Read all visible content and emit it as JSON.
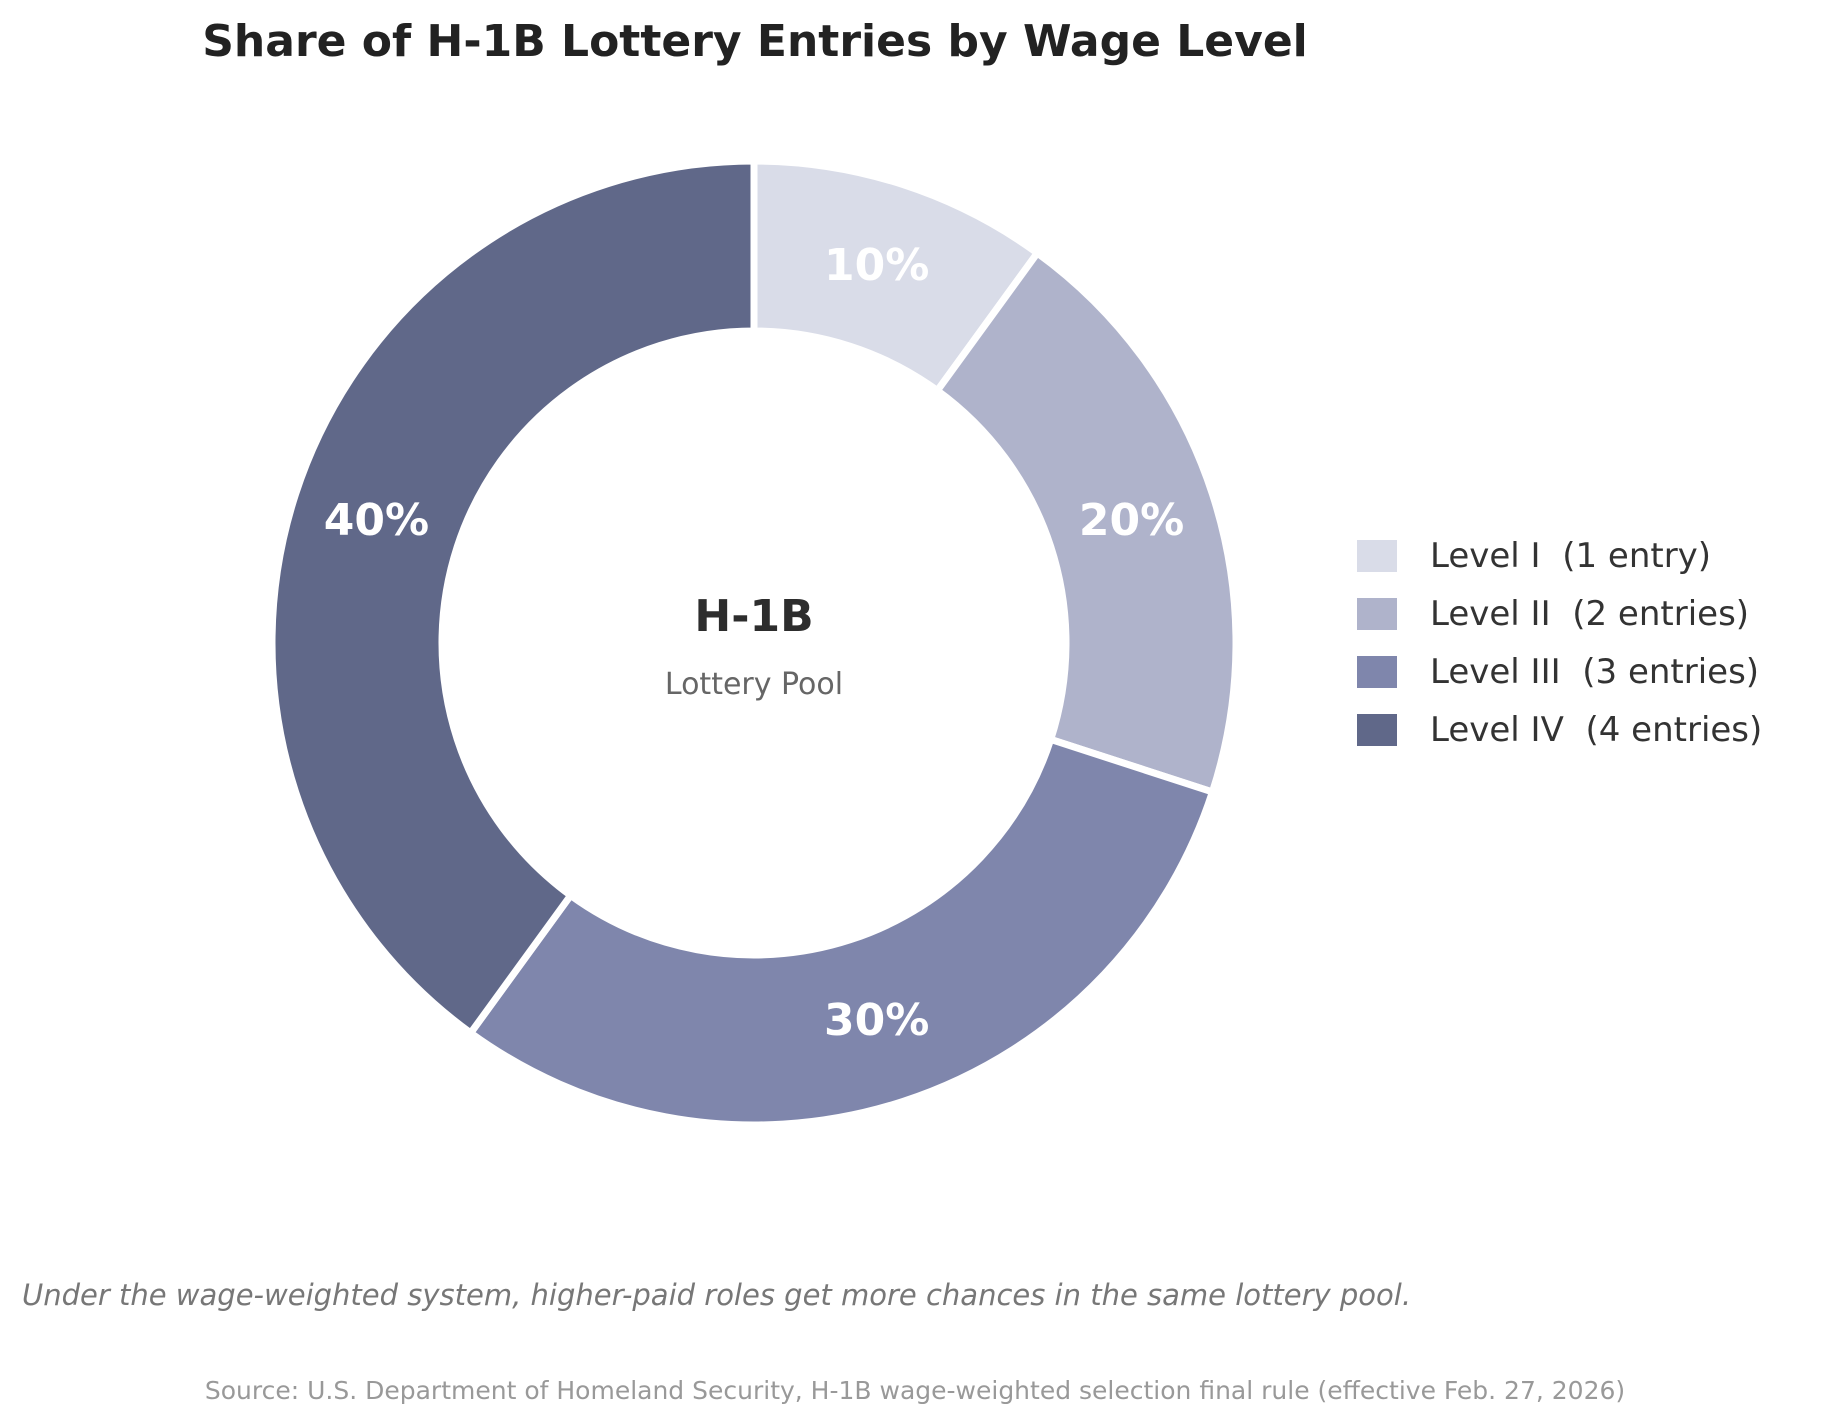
{
  "chart_data": {
    "type": "pie",
    "style": "donut",
    "title": "Share of H-1B Lottery Entries by Wage Level",
    "center_label": {
      "title": "H-1B",
      "subtitle": "Lottery Pool"
    },
    "categories": [
      "Level I  (1 entry)",
      "Level II  (2 entries)",
      "Level III  (3 entries)",
      "Level IV  (4 entries)"
    ],
    "values": [
      10,
      20,
      30,
      40
    ],
    "value_labels": [
      "10%",
      "20%",
      "30%",
      "40%"
    ],
    "colors": [
      "#d9dce8",
      "#afb3cb",
      "#7f86ac",
      "#606889"
    ],
    "start_angle": "12 o'clock",
    "direction": "clockwise",
    "legend_position": "right",
    "caption": "Under the wage-weighted system, higher-paid roles get more chances in the same lottery pool.",
    "source": "Source: U.S. Department of Homeland Security, H-1B wage-weighted selection final rule (effective Feb. 27, 2026)"
  }
}
